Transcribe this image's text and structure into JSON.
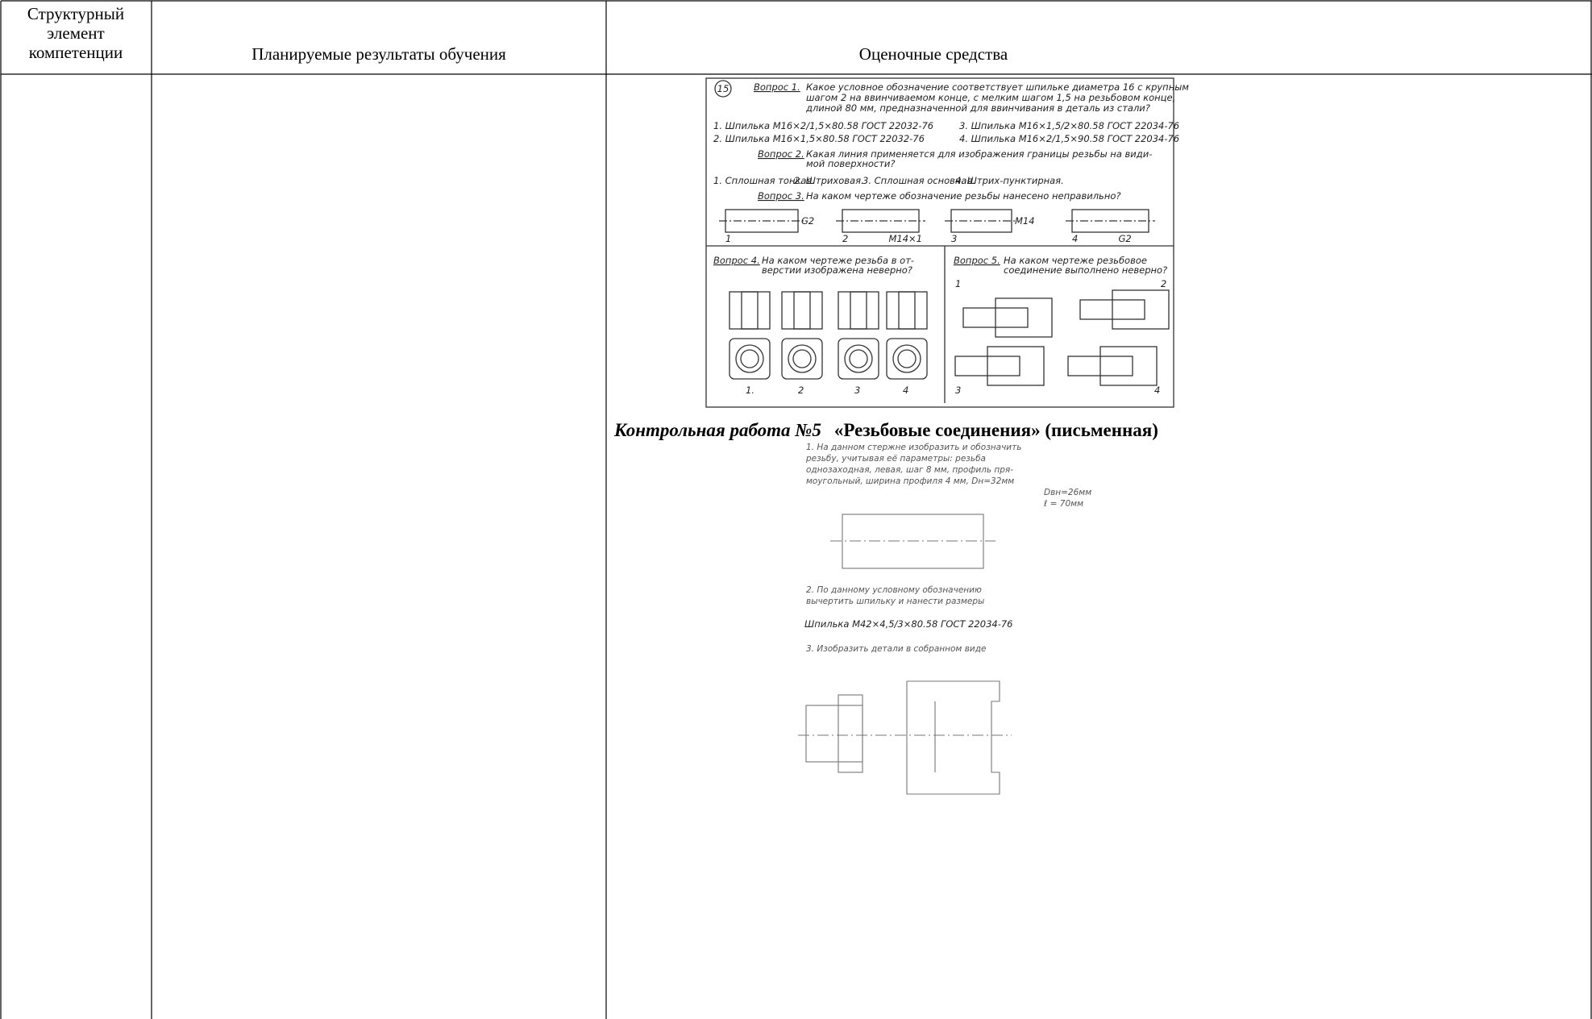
{
  "table": {
    "header": {
      "col1": [
        "Структурный",
        "элемент",
        "компетенции"
      ],
      "col2": "Планируемые результаты обучения",
      "col3": "Оценочные средства"
    },
    "test1": {
      "number": "15",
      "q1": {
        "label": "Вопрос 1.",
        "lines": [
          "Какое условное обозначение соответствует шпильке диаметра 16 с крупным",
          "шагом 2 на ввинчиваемом конце, с мелким шагом 1,5 на резьбовом конце,",
          "длиной 80 мм, предназначенной для ввинчивания в деталь из стали?"
        ],
        "options": [
          "1. Шпилька М16×2/1,5×80.58 ГОСТ 22032-76",
          "3. Шпилька М16×1,5/2×80.58 ГОСТ 22034-76",
          "2. Шпилька М16×1,5×80.58 ГОСТ 22032-76",
          "4. Шпилька М16×2/1,5×90.58 ГОСТ 22034-76"
        ]
      },
      "q2": {
        "label": "Вопрос 2.",
        "lines": [
          "Какая линия применяется для изображения границы резьбы на види-",
          "мой поверхности?"
        ],
        "options": [
          "1. Сплошная тонкая.",
          "2. Штриховая.",
          "3. Сплошная основная.",
          "4. Штрих-пунктирная."
        ]
      },
      "q3": {
        "label": "Вопрос 3.",
        "lines": [
          "На каком чертеже обозначение резьбы нанесено неправильно?"
        ],
        "marks": [
          "G2",
          "М14×1",
          "М14",
          "G2"
        ],
        "numbers": [
          "1",
          "2",
          "3",
          "4"
        ]
      },
      "q4": {
        "label": "Вопрос 4.",
        "lines": [
          "На каком чертеже резьба в от-",
          "верстии изображена неверно?"
        ],
        "numbers": [
          "1.",
          "2",
          "3",
          "4"
        ]
      },
      "q5": {
        "label": "Вопрос 5.",
        "lines": [
          "На каком чертеже резьбовое",
          "соединение выполнено неверно?"
        ],
        "numbers": [
          "1",
          "2",
          "3",
          "4"
        ]
      }
    },
    "heading": {
      "part1": "Контрольная работа №5",
      "part2": "«Резьбовые соединения» (письменная)"
    },
    "test2": {
      "lines": [
        "1. На данном стержне изобразить и обозначить",
        "резьбу, учитывая её параметры: резьба",
        "однозаходная, левая, шаг 8 мм, профиль пря-",
        "моугольный, ширина профиля 4 мм, Dн=32мм",
        "Dвн=26мм",
        "ℓ = 70мм"
      ],
      "task2": [
        "2. По данному условному обозначению",
        "вычертить шпильку и нанести размеры"
      ],
      "designation": "Шпилька М42×4,5/3×80.58 ГОСТ 22034-76",
      "task3": "3. Изобразить детали в собранном виде"
    }
  }
}
